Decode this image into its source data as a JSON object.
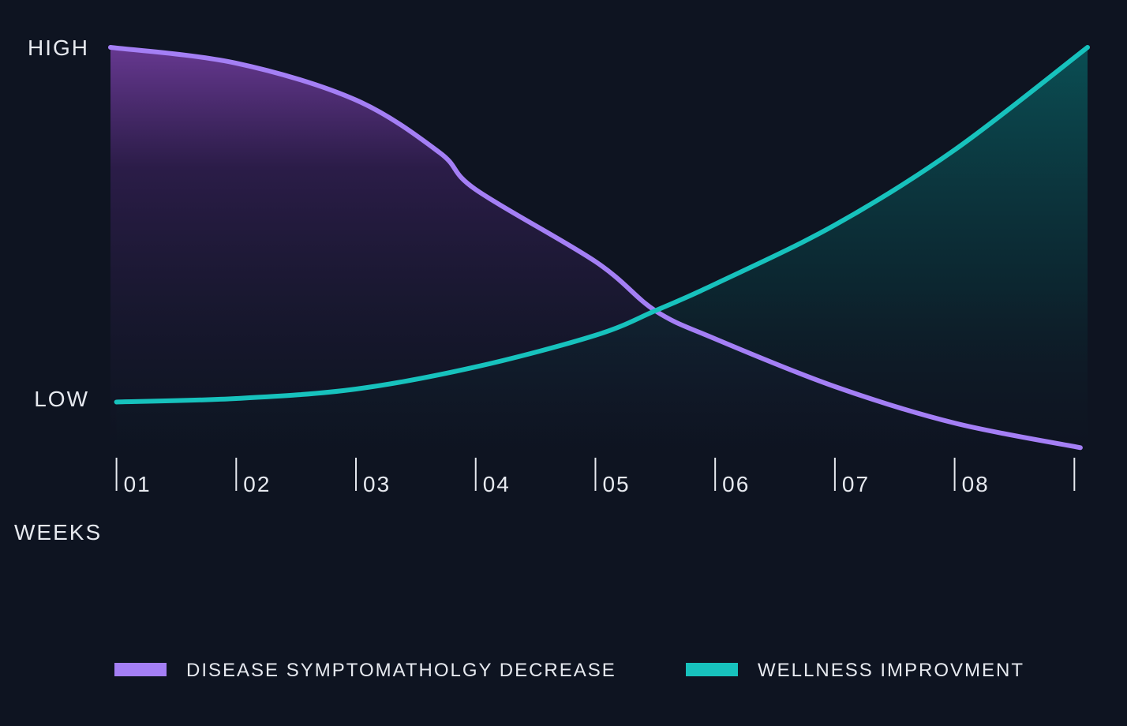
{
  "chart_data": {
    "type": "area",
    "x_label": "WEEKS",
    "xlim": [
      0.95,
      9.11
    ],
    "xticks": [
      {
        "value": 1,
        "label": "01"
      },
      {
        "value": 2,
        "label": "02"
      },
      {
        "value": 3,
        "label": "03"
      },
      {
        "value": 4,
        "label": "04"
      },
      {
        "value": 5,
        "label": "05"
      },
      {
        "value": 6,
        "label": "06"
      },
      {
        "value": 7,
        "label": "07"
      },
      {
        "value": 8,
        "label": "08"
      },
      {
        "value": 9,
        "label": null
      }
    ],
    "ylim": [
      -15,
      100
    ],
    "yticks": [
      {
        "value": 0,
        "label": "LOW"
      },
      {
        "value": 100,
        "label": "HIGH"
      }
    ],
    "series": [
      {
        "name": "DISEASE SYMPTOMATHOLGY DECREASE",
        "color": "#a47ff5",
        "x": [
          0.95,
          2,
          3,
          3.7,
          4,
          5,
          5.5,
          6,
          7,
          8,
          9.05
        ],
        "values": [
          100,
          95.5,
          85,
          70,
          59.5,
          39,
          25,
          17,
          3.4,
          -7,
          -14
        ]
      },
      {
        "name": "WELLNESS IMPROVMENT",
        "color": "#17c2bd",
        "x": [
          1,
          2,
          3,
          4,
          5,
          5.5,
          6,
          7,
          8,
          9.11
        ],
        "values": [
          -1,
          0,
          2.7,
          9,
          18,
          25,
          32.6,
          49.4,
          70.8,
          100
        ]
      }
    ]
  }
}
